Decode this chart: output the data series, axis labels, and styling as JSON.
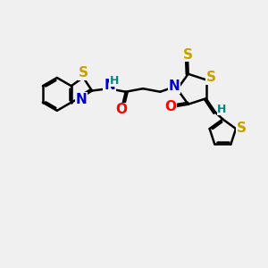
{
  "bg_color": "#f0f0f0",
  "atom_colors": {
    "S": "#c8a000",
    "N": "#0000cc",
    "O": "#ff0000",
    "C": "#000000",
    "H": "#008888"
  },
  "bond_color": "#000000",
  "bond_width": 1.8,
  "font_size": 11,
  "fig_size": [
    3.0,
    3.0
  ],
  "dpi": 100
}
